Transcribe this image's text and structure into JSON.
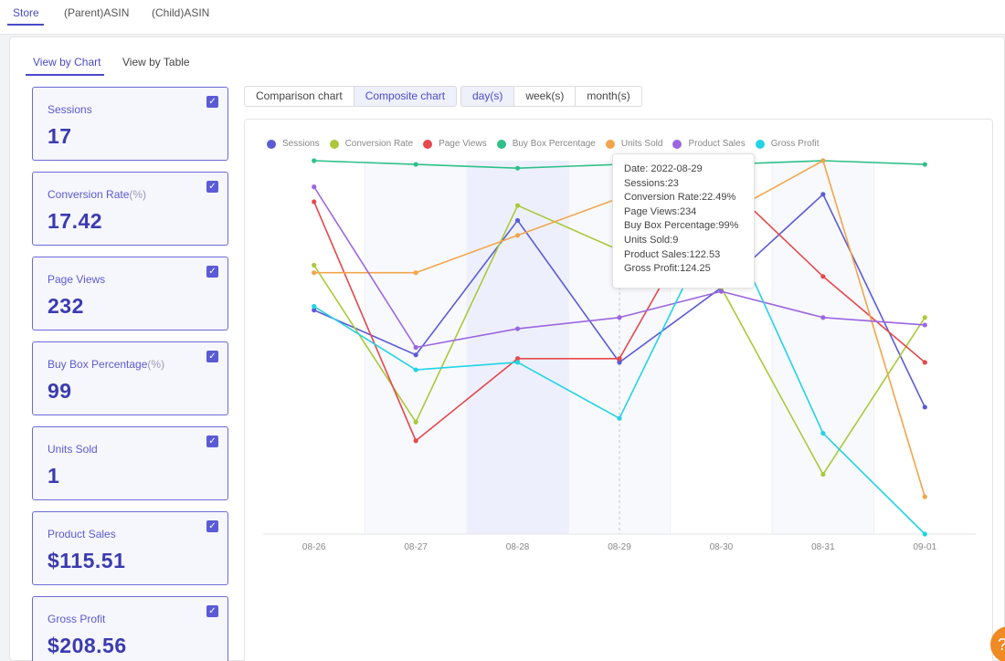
{
  "top_tabs": [
    {
      "label": "Store",
      "active": true
    },
    {
      "label": "(Parent)ASIN",
      "active": false
    },
    {
      "label": "(Child)ASIN",
      "active": false
    }
  ],
  "view_tabs": [
    {
      "label": "View by Chart",
      "active": true
    },
    {
      "label": "View by Table",
      "active": false
    }
  ],
  "metrics": [
    {
      "label": "Sessions",
      "unit": "",
      "value": "17",
      "checked": true
    },
    {
      "label": "Conversion Rate",
      "unit": "(%)",
      "value": "17.42",
      "checked": true
    },
    {
      "label": "Page Views",
      "unit": "",
      "value": "232",
      "checked": true
    },
    {
      "label": "Buy Box Percentage",
      "unit": "(%)",
      "value": "99",
      "checked": true
    },
    {
      "label": "Units Sold",
      "unit": "",
      "value": "1",
      "checked": true
    },
    {
      "label": "Product Sales",
      "unit": "",
      "value": "$115.51",
      "checked": true
    },
    {
      "label": "Gross Profit",
      "unit": "",
      "value": "$208.56",
      "checked": true
    }
  ],
  "chart_mode_buttons": [
    {
      "label": "Comparison chart",
      "active": false
    },
    {
      "label": "Composite chart",
      "active": true
    }
  ],
  "granularity_buttons": [
    {
      "label": "day(s)",
      "active": true
    },
    {
      "label": "week(s)",
      "active": false
    },
    {
      "label": "month(s)",
      "active": false
    }
  ],
  "tooltip": {
    "lines": [
      "Date: 2022-08-29",
      "Sessions:23",
      "Conversion Rate:22.49%",
      "Page Views:234",
      "Buy Box Percentage:99%",
      "Units Sold:9",
      "Product Sales:122.53",
      "Gross Profit:124.25"
    ]
  },
  "chart_data": {
    "type": "line",
    "categories": [
      "08-26",
      "08-27",
      "08-28",
      "08-29",
      "08-30",
      "08-31",
      "09-01"
    ],
    "highlighted_categories": [
      "08-28"
    ],
    "hover_category": "08-29",
    "normalized_scale": true,
    "ylim": [
      0,
      100
    ],
    "grid": "vertical category bands",
    "legend_position": "top-left",
    "series": [
      {
        "name": "Sessions",
        "color": "#5b5bd6",
        "values": [
          60,
          48,
          84,
          46,
          66,
          91,
          34
        ]
      },
      {
        "name": "Conversion Rate",
        "color": "#a9c93a",
        "values": [
          72,
          30,
          88,
          76,
          66,
          16,
          58
        ]
      },
      {
        "name": "Page Views",
        "color": "#e5484d",
        "values": [
          89,
          25,
          47,
          47,
          95,
          69,
          46
        ]
      },
      {
        "name": "Buy Box Percentage",
        "color": "#2fc089",
        "values": [
          100,
          99,
          98,
          99,
          99,
          100,
          99
        ]
      },
      {
        "name": "Units Sold",
        "color": "#f2a54a",
        "values": [
          70,
          70,
          80,
          90,
          85,
          100,
          10
        ]
      },
      {
        "name": "Product Sales",
        "color": "#9b66e0",
        "values": [
          93,
          50,
          55,
          58,
          65,
          58,
          56
        ]
      },
      {
        "name": "Gross Profit",
        "color": "#22d3e6",
        "values": [
          61,
          44,
          46,
          31,
          87,
          27,
          0
        ]
      }
    ]
  }
}
